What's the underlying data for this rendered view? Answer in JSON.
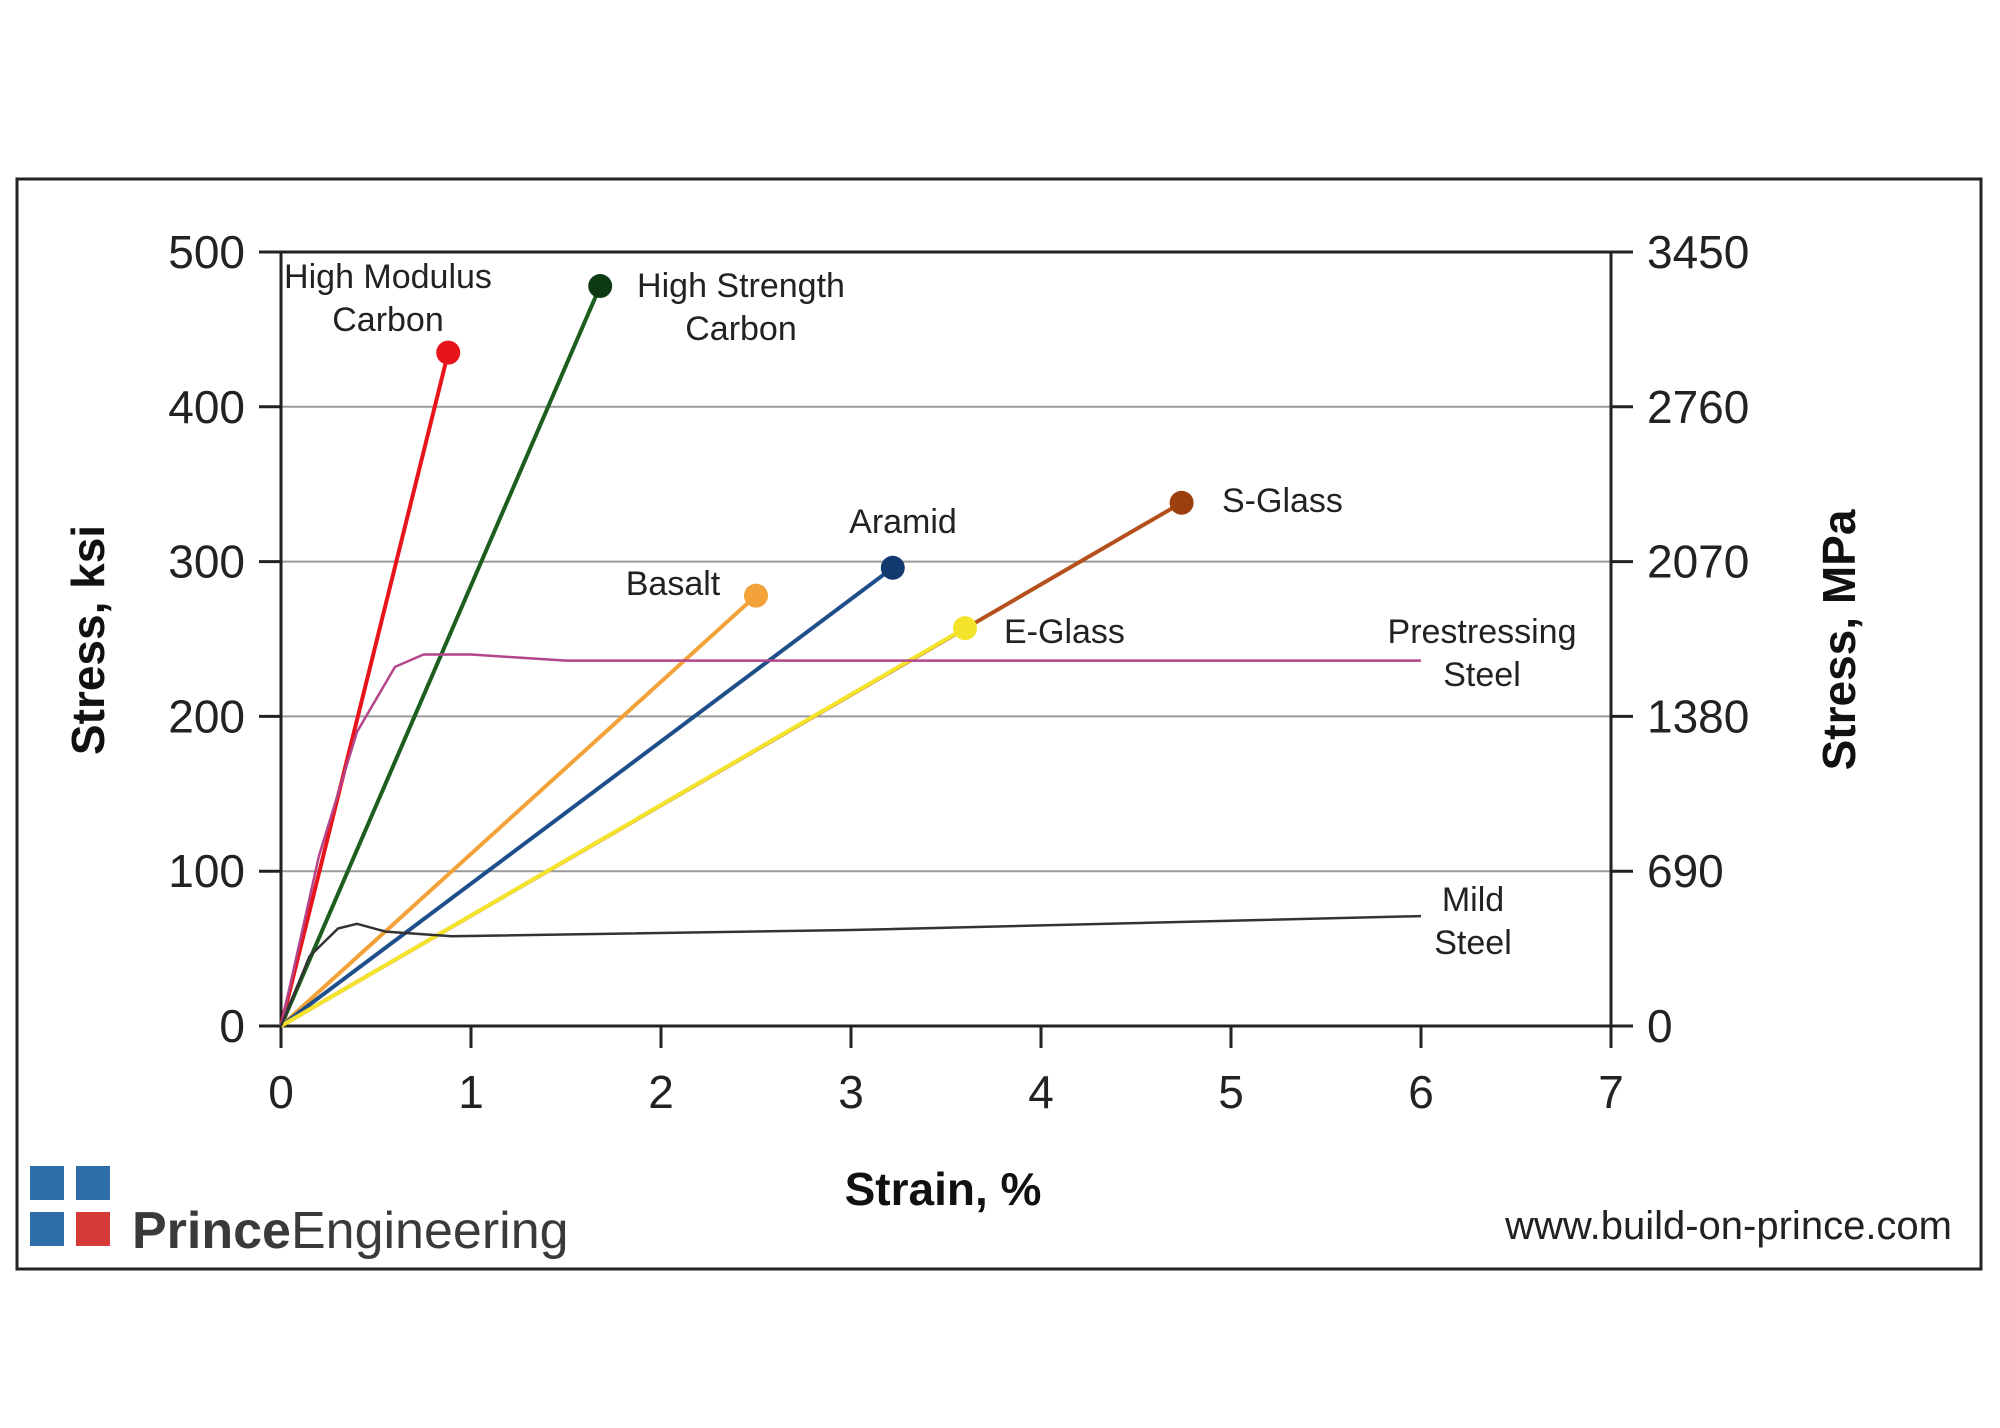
{
  "chart_data": {
    "type": "line",
    "xlabel": "Strain, %",
    "ylabel": "Stress, ksi",
    "y2label": "Stress, MPa",
    "xlim": [
      0,
      7
    ],
    "ylim": [
      0,
      500
    ],
    "x_ticks": [
      "0",
      "1",
      "2",
      "3",
      "4",
      "5",
      "6",
      "7"
    ],
    "y_ticks": [
      "0",
      "100",
      "200",
      "300",
      "400",
      "500"
    ],
    "y2_ticks": [
      "0",
      "690",
      "1380",
      "2070",
      "2760",
      "3450"
    ],
    "grid": "horizontal",
    "series": [
      {
        "name": "High Modulus\nCarbon",
        "color": "#e8141b",
        "marker": true,
        "points": [
          [
            0,
            0
          ],
          [
            0.88,
            435
          ]
        ]
      },
      {
        "name": "High Strength\nCarbon",
        "color": "#1b5e1e",
        "marker": true,
        "marker_color": "#0e3a12",
        "points": [
          [
            0,
            0
          ],
          [
            1.68,
            478
          ]
        ]
      },
      {
        "name": "Basalt",
        "color": "#f3a23a",
        "marker": true,
        "points": [
          [
            0,
            0
          ],
          [
            2.5,
            278
          ]
        ]
      },
      {
        "name": "Aramid",
        "color": "#1f4f8a",
        "marker": true,
        "marker_color": "#123a6e",
        "points": [
          [
            0,
            0
          ],
          [
            3.22,
            296
          ]
        ]
      },
      {
        "name": "S-Glass",
        "color": "#b5501c",
        "marker": true,
        "marker_color": "#9c3f0e",
        "points": [
          [
            0,
            0
          ],
          [
            4.74,
            338
          ]
        ]
      },
      {
        "name": "E-Glass",
        "color": "#f4e42c",
        "marker": true,
        "points": [
          [
            0,
            0
          ],
          [
            3.6,
            257
          ]
        ]
      },
      {
        "name": "Prestressing\nSteel",
        "color": "#b4458a",
        "marker": false,
        "points": [
          [
            0,
            0
          ],
          [
            0.2,
            110
          ],
          [
            0.4,
            190
          ],
          [
            0.6,
            232
          ],
          [
            0.75,
            240
          ],
          [
            1.0,
            240
          ],
          [
            1.5,
            236
          ],
          [
            3.0,
            236
          ],
          [
            6.0,
            236
          ]
        ]
      },
      {
        "name": "Mild\nSteel",
        "color": "#333333",
        "marker": false,
        "points": [
          [
            0,
            0
          ],
          [
            0.15,
            45
          ],
          [
            0.3,
            63
          ],
          [
            0.4,
            66
          ],
          [
            0.55,
            61
          ],
          [
            0.9,
            58
          ],
          [
            3.0,
            62
          ],
          [
            6.0,
            71
          ]
        ]
      }
    ]
  },
  "branding": {
    "logo_bold": "Prince",
    "logo_regular": "Engineering",
    "url": "www.build-on-prince.com",
    "logo_colors": [
      "#2e6fa8",
      "#2e6fa8",
      "#2e6fa8",
      "#d63a36"
    ]
  }
}
